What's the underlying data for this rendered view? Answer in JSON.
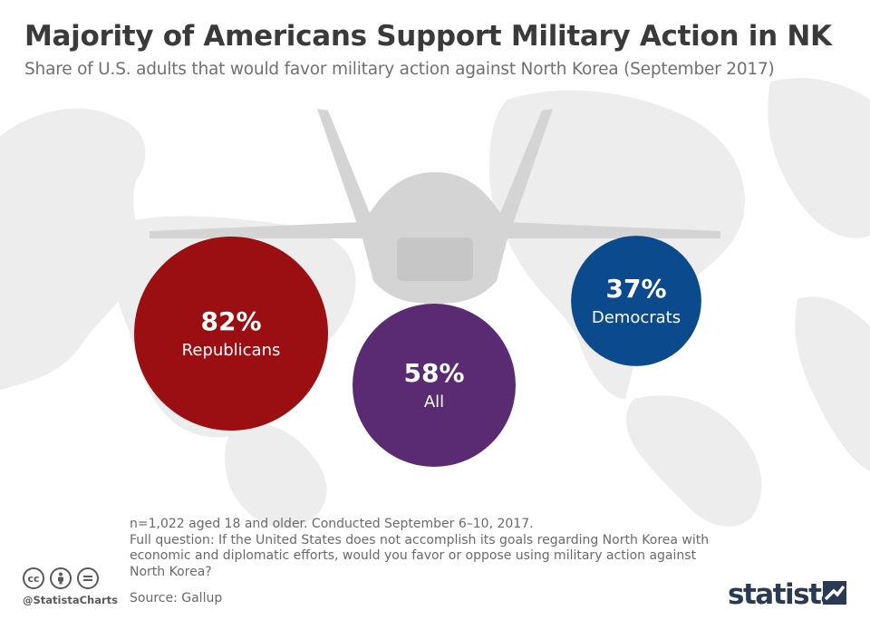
{
  "header": {
    "title": "Majority of Americans Support Military Action in NK",
    "subtitle": "Share of U.S. adults that would favor military action against North Korea (September 2017)"
  },
  "chart_data": {
    "type": "bubble",
    "unit": "%",
    "categories": [
      "Republicans",
      "All",
      "Democrats"
    ],
    "values": [
      82,
      58,
      37
    ],
    "colors": [
      "#9b0e12",
      "#5a2a72",
      "#0b4a8c"
    ],
    "labels": [
      "82%",
      "58%",
      "37%"
    ]
  },
  "notes": {
    "sample": "n=1,022 aged 18 and older. Conducted September 6–10, 2017.",
    "question": "Full question: If the United States does not accomplish its goals regarding North Korea with economic and diplomatic efforts, would you favor or oppose using military action against North Korea?",
    "source": "Source: Gallup"
  },
  "footer": {
    "handle": "@StatistaCharts",
    "brand": "statista",
    "license_icons": [
      "cc-icon",
      "attribution-icon",
      "no-derivatives-icon"
    ]
  }
}
